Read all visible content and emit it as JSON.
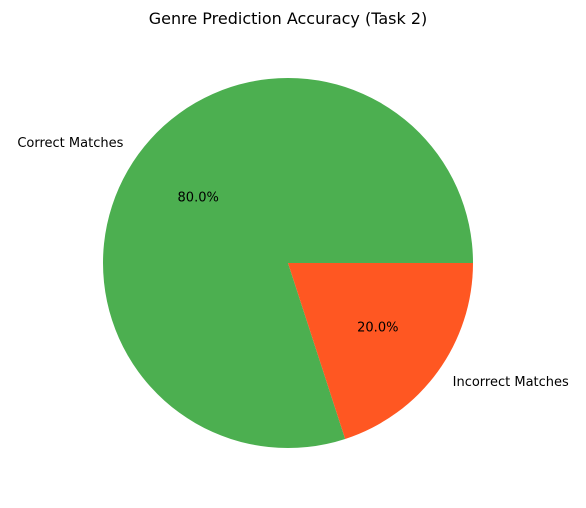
{
  "chart_data": {
    "type": "pie",
    "title": "Genre Prediction Accuracy (Task 2)",
    "labels": [
      "Correct Matches",
      "Incorrect Matches"
    ],
    "values": [
      80,
      20
    ],
    "percent_labels": [
      "80.0%",
      "20.0%"
    ],
    "colors": [
      "#4CAF50",
      "#FF5722"
    ],
    "start_angle_deg": 0,
    "direction": "counterclockwise",
    "legend": "none"
  }
}
